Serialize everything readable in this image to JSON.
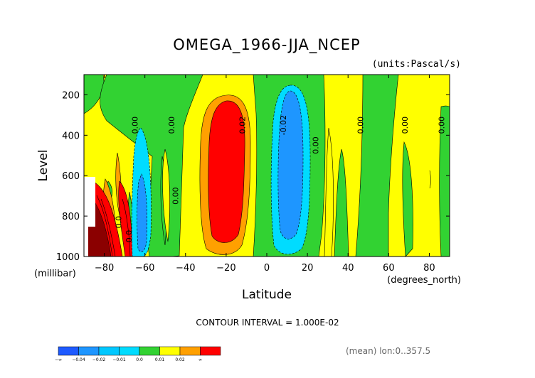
{
  "chart_data": {
    "type": "heatmap",
    "title": "OMEGA_1966-JJA_NCEP",
    "units_label": "(units:Pascal/s)",
    "xlabel": "Latitude",
    "ylabel": "Level",
    "x_unit_label": "(degrees_north)",
    "y_unit_label": "(millibar)",
    "xlim": [
      -90,
      90
    ],
    "ylim": [
      1000,
      100
    ],
    "x_ticks": [
      -80,
      -60,
      -40,
      -20,
      0,
      20,
      40,
      60,
      80
    ],
    "x_tick_labels": [
      "−80",
      "−60",
      "−40",
      "−20",
      "0",
      "20",
      "40",
      "60",
      "80"
    ],
    "y_ticks": [
      200,
      400,
      600,
      800,
      1000
    ],
    "y_tick_labels": [
      "200",
      "400",
      "600",
      "800",
      "1000"
    ],
    "contour_interval_text": "CONTOUR INTERVAL = 1.000E-02",
    "mean_note": "(mean) lon:0..357.5",
    "colorbar": {
      "labels": [
        "−∞",
        "−0.04",
        "−0.02",
        "−0.01",
        "0.0",
        "0.01",
        "0.02",
        "∞"
      ],
      "colors": [
        "#1e5aff",
        "#1e96ff",
        "#00c8ff",
        "#00dcff",
        "#32d232",
        "#ffff00",
        "#ffa000",
        "#ff0000"
      ]
    },
    "contour_labels": [
      {
        "text": "0.00",
        "lat": -65,
        "lev": 350
      },
      {
        "text": "0.00",
        "lat": -47,
        "lev": 350
      },
      {
        "text": "0.00",
        "lat": -45,
        "lev": 700
      },
      {
        "text": "0.02",
        "lat": -12,
        "lev": 350
      },
      {
        "text": "-0.02",
        "lat": 8,
        "lev": 350
      },
      {
        "text": "0.00",
        "lat": 24,
        "lev": 450
      },
      {
        "text": "0.00",
        "lat": 46,
        "lev": 350
      },
      {
        "text": "0.00",
        "lat": 68,
        "lev": 350
      },
      {
        "text": "0.00",
        "lat": 86,
        "lev": 350
      },
      {
        "text": "0.0",
        "lat": -68,
        "lev": 900
      },
      {
        "text": "0.0",
        "lat": -73,
        "lev": 830
      }
    ]
  }
}
